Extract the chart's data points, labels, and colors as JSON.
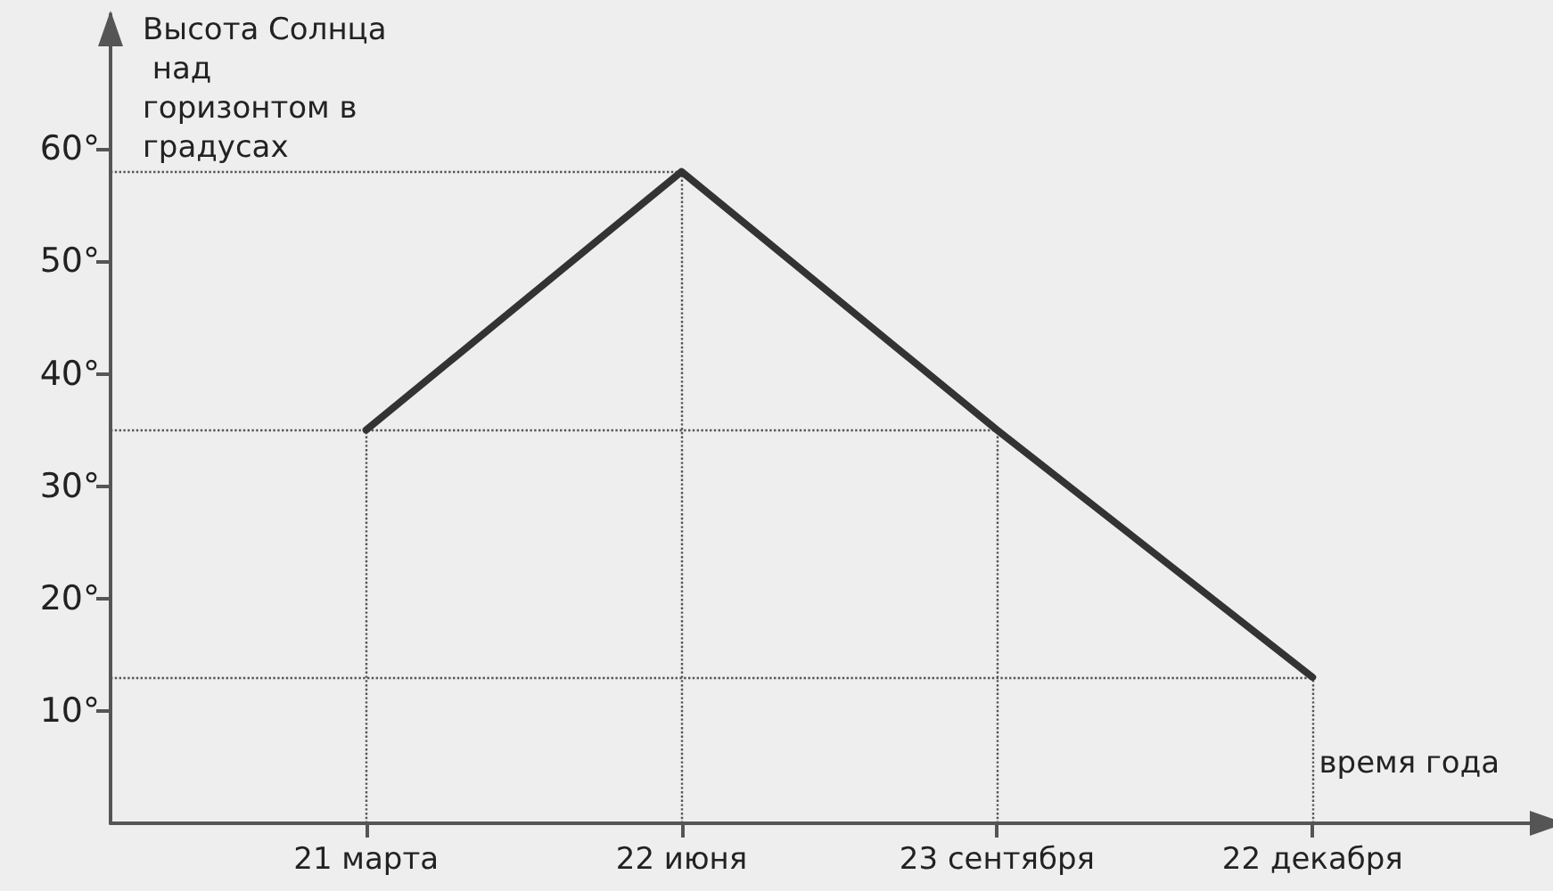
{
  "chart_data": {
    "type": "line",
    "xlabel": "время года",
    "ylabel": "Высота Солнца над горизонтом в градусах",
    "categories": [
      "21 марта",
      "22 июня",
      "23 сентября",
      "22 декабря"
    ],
    "values": [
      35,
      58,
      35,
      13
    ],
    "color": "#333333",
    "marker": "none",
    "line_style": "solid",
    "grid": false,
    "ylim": [
      0,
      72
    ],
    "yticks": [
      {
        "value": 10,
        "label": "10°"
      },
      {
        "value": 20,
        "label": "20°"
      },
      {
        "value": 30,
        "label": "30°"
      },
      {
        "value": 40,
        "label": "40°"
      },
      {
        "value": 50,
        "label": "50°"
      },
      {
        "value": 60,
        "label": "60°"
      }
    ],
    "ref_lines": [
      {
        "axis": "y",
        "value": 58,
        "line_style": "dotted",
        "color": "#555555"
      },
      {
        "axis": "y",
        "value": 35,
        "line_style": "dotted",
        "color": "#555555"
      },
      {
        "axis": "y",
        "value": 13,
        "line_style": "dotted",
        "color": "#555555"
      },
      {
        "axis": "x",
        "value": "21 марта",
        "line_style": "dotted",
        "color": "#555555"
      },
      {
        "axis": "x",
        "value": "22 июня",
        "line_style": "dotted",
        "color": "#555555"
      },
      {
        "axis": "x",
        "value": "23 сентября",
        "line_style": "dotted",
        "color": "#555555"
      },
      {
        "axis": "x",
        "value": "22 декабря",
        "line_style": "dotted",
        "color": "#555555"
      }
    ]
  }
}
